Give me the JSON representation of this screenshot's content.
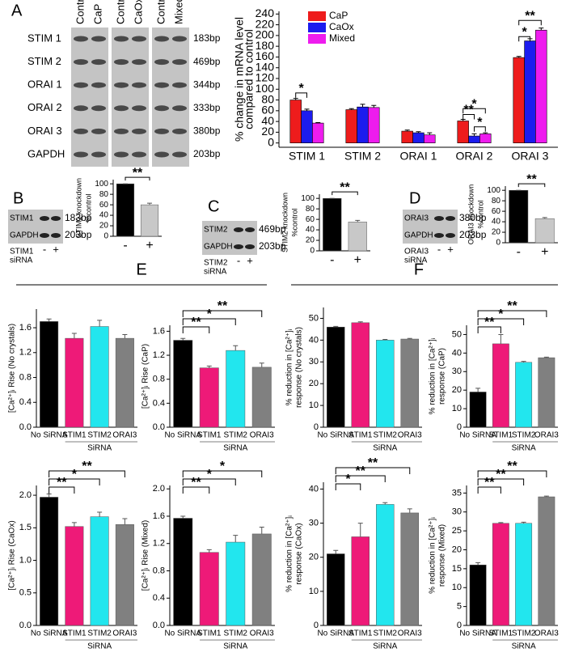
{
  "panel_labels": {
    "a": "A",
    "b": "B",
    "c": "C",
    "d": "D",
    "e": "E",
    "f": "F"
  },
  "gel_a": {
    "lanes": [
      [
        "Control",
        "CaP"
      ],
      [
        "Control",
        "CaOx"
      ],
      [
        "Control",
        "Mixed"
      ]
    ],
    "rows": [
      {
        "gene": "STIM 1",
        "size": "183bp"
      },
      {
        "gene": "STIM 2",
        "size": "469bp"
      },
      {
        "gene": "ORAI 1",
        "size": "344bp"
      },
      {
        "gene": "ORAI 2",
        "size": "333bp"
      },
      {
        "gene": "ORAI 3",
        "size": "380bp"
      },
      {
        "gene": "GAPDH",
        "size": "203bp"
      }
    ]
  },
  "knockdown_gels": [
    {
      "target": "STIM1",
      "target_size": "183bp",
      "control": "GAPDH",
      "control_size": "203bp",
      "sirna": [
        "STIM1",
        "siRNA"
      ],
      "lanes": [
        "-",
        "+"
      ]
    },
    {
      "target": "STIM2",
      "target_size": "469bp",
      "control": "GAPDH",
      "control_size": "203bp",
      "sirna": [
        "STIM2",
        "siRNA"
      ],
      "lanes": [
        "-",
        "+"
      ]
    },
    {
      "target": "ORAI3",
      "target_size": "380bp",
      "control": "GAPDH",
      "control_size": "203bp",
      "sirna": [
        "ORAI3",
        "siRNA"
      ],
      "lanes": [
        "-",
        "+"
      ]
    }
  ],
  "chart_data": [
    {
      "type": "grouped-bar",
      "ylabel": [
        "% change in mRNA level",
        "compared to control"
      ],
      "categories": [
        "STIM 1",
        "STIM 2",
        "ORAI 1",
        "ORAI 2",
        "ORAI 3"
      ],
      "series": [
        {
          "name": "CaP",
          "color": "#ee1c1c",
          "values": [
            80,
            62,
            22,
            41,
            159
          ],
          "errors": [
            3,
            2,
            2,
            3,
            2
          ]
        },
        {
          "name": "CaOx",
          "color": "#1c1cee",
          "values": [
            60,
            67,
            19,
            13,
            190
          ],
          "errors": [
            3,
            5,
            2,
            4,
            4
          ]
        },
        {
          "name": "Mixed",
          "color": "#ee1cee",
          "values": [
            37,
            66,
            15,
            17,
            210
          ],
          "errors": [
            1,
            4,
            4,
            2,
            4
          ]
        }
      ],
      "ylim": [
        -8,
        245
      ],
      "yticks": [
        0,
        20,
        40,
        60,
        80,
        100,
        120,
        140,
        160,
        180,
        200,
        220,
        240
      ],
      "legend": "upper-left",
      "annotations": [
        "*",
        "**",
        "*",
        "*",
        "*",
        "**"
      ]
    },
    {
      "type": "bar",
      "ylabel": [
        "STIM1 knockdown",
        "%control"
      ],
      "categories": [
        "-",
        "+"
      ],
      "values": [
        100,
        60
      ],
      "errors": [
        0,
        3
      ],
      "colors": [
        "#000000",
        "#c8c8c8"
      ],
      "ylim": [
        0,
        108
      ],
      "yticks": [
        0,
        20,
        40,
        60,
        80,
        100
      ],
      "annotations": [
        "**"
      ]
    },
    {
      "type": "bar",
      "ylabel": [
        "STIM2 knockdown",
        "%control"
      ],
      "categories": [
        "-",
        "+"
      ],
      "values": [
        100,
        55
      ],
      "errors": [
        0,
        3
      ],
      "colors": [
        "#000000",
        "#c8c8c8"
      ],
      "ylim": [
        0,
        108
      ],
      "yticks": [
        0,
        20,
        40,
        60,
        80,
        100
      ],
      "annotations": [
        "**"
      ]
    },
    {
      "type": "bar",
      "ylabel": [
        "ORAI3 knockdown",
        "%control"
      ],
      "categories": [
        "-",
        "+"
      ],
      "values": [
        100,
        46
      ],
      "errors": [
        0,
        2
      ],
      "colors": [
        "#000000",
        "#c8c8c8"
      ],
      "ylim": [
        0,
        108
      ],
      "yticks": [
        0,
        20,
        40,
        60,
        80,
        100
      ],
      "annotations": [
        "**"
      ]
    },
    {
      "type": "bar",
      "ylabel": [
        "[Ca²⁺]ᵢ Rise (No crystals)"
      ],
      "categories": [
        "No SiRNA",
        "STIM1",
        "STIM2",
        "ORAI3"
      ],
      "xlabel": "SiRNA",
      "values": [
        1.7,
        1.43,
        1.62,
        1.43
      ],
      "errors": [
        0.04,
        0.08,
        0.1,
        0.06
      ],
      "colors": [
        "#000000",
        "#ee1a78",
        "#22e6ee",
        "#808080"
      ],
      "ylim": [
        0,
        1.9
      ],
      "yticks": [
        {
          "value": 0,
          "label": "0.0"
        },
        0.4,
        0.8,
        1.2,
        1.6
      ],
      "annotations": []
    },
    {
      "type": "bar",
      "ylabel": [
        "[Ca²⁺]ᵢ Rise (CaP)"
      ],
      "categories": [
        "No SiRNA",
        "STIM1",
        "STIM2",
        "ORAI3"
      ],
      "xlabel": "SiRNA",
      "values": [
        1.45,
        0.99,
        1.28,
        1.0
      ],
      "errors": [
        0.03,
        0.03,
        0.08,
        0.07
      ],
      "colors": [
        "#000000",
        "#ee1a78",
        "#22e6ee",
        "#808080"
      ],
      "ylim": [
        0,
        1.7
      ],
      "yticks": [
        {
          "value": 0,
          "label": "0.0"
        },
        0.4,
        0.8,
        1.2,
        1.6
      ],
      "annotations": [
        "**",
        "*",
        "**"
      ]
    },
    {
      "type": "bar",
      "ylabel": [
        "[Ca²⁺]ᵢ Rise (CaOx)"
      ],
      "categories": [
        "No SiRNA",
        "STIM1",
        "STIM2",
        "ORAI3"
      ],
      "xlabel": "SiRNA",
      "values": [
        1.97,
        1.52,
        1.67,
        1.55
      ],
      "errors": [
        0.05,
        0.06,
        0.07,
        0.09
      ],
      "colors": [
        "#000000",
        "#ee1a78",
        "#22e6ee",
        "#808080"
      ],
      "ylim": [
        0,
        2.15
      ],
      "yticks": [
        {
          "value": 0,
          "label": "0.0"
        },
        0.5,
        {
          "value": 1,
          "label": "1.0"
        },
        1.5,
        {
          "value": 2,
          "label": "2.0"
        }
      ],
      "annotations": [
        "**",
        "*",
        "**"
      ]
    },
    {
      "type": "bar",
      "ylabel": [
        "[Ca²⁺]ᵢ Rise (Mixed)"
      ],
      "categories": [
        "No SiRNA",
        "STIM1",
        "STIM2",
        "ORAI3"
      ],
      "xlabel": "SiRNA",
      "values": [
        1.57,
        1.07,
        1.22,
        1.34
      ],
      "errors": [
        0.03,
        0.04,
        0.1,
        0.1
      ],
      "colors": [
        "#000000",
        "#ee1a78",
        "#22e6ee",
        "#808080"
      ],
      "ylim": [
        0,
        2.05
      ],
      "yticks": [
        {
          "value": 0,
          "label": "0.0"
        },
        0.4,
        0.8,
        1.2,
        1.6,
        {
          "value": 2,
          "label": "2.0"
        }
      ],
      "annotations": [
        "**",
        "*",
        "*"
      ]
    },
    {
      "type": "bar",
      "ylabel": [
        "% reduction in [Ca²⁺]ᵢ",
        "response (No crystals)"
      ],
      "categories": [
        "No SiRNA",
        "STIM1",
        "STIM2",
        "ORAI3"
      ],
      "xlabel": "SiRNA",
      "values": [
        46,
        48,
        40,
        40.5
      ],
      "errors": [
        0.3,
        0.4,
        0.3,
        0.3
      ],
      "colors": [
        "#000000",
        "#ee1a78",
        "#22e6ee",
        "#808080"
      ],
      "ylim": [
        0,
        55
      ],
      "yticks": [
        0,
        10,
        20,
        30,
        40,
        50
      ],
      "annotations": []
    },
    {
      "type": "bar",
      "ylabel": [
        "% reduction in [Ca²⁺]ᵢ",
        "response (CaP)"
      ],
      "categories": [
        "No SiRNA",
        "STIM1",
        "STIM2",
        "ORAI3"
      ],
      "xlabel": "SiRNA",
      "values": [
        19,
        45,
        35,
        37.5
      ],
      "errors": [
        2,
        5,
        0.5,
        0.3
      ],
      "colors": [
        "#000000",
        "#ee1a78",
        "#22e6ee",
        "#808080"
      ],
      "ylim": [
        0,
        55
      ],
      "yticks": [
        0,
        10,
        20,
        30,
        40,
        50
      ],
      "annotations": [
        "**",
        "*",
        "**"
      ]
    },
    {
      "type": "bar",
      "ylabel": [
        "% reduction in [Ca²⁺]ᵢ",
        "response (CaOx)"
      ],
      "categories": [
        "No SiRNA",
        "STIM1",
        "STIM2",
        "ORAI3"
      ],
      "xlabel": "SiRNA",
      "values": [
        21,
        26,
        35.5,
        33
      ],
      "errors": [
        1,
        4,
        0.5,
        1.2
      ],
      "colors": [
        "#000000",
        "#ee1a78",
        "#22e6ee",
        "#808080"
      ],
      "ylim": [
        0,
        42
      ],
      "yticks": [
        0,
        10,
        20,
        30,
        40
      ],
      "annotations": [
        "*",
        "**",
        "**"
      ]
    },
    {
      "type": "bar",
      "ylabel": [
        "% reduction in [Ca²⁺]ᵢ",
        "response (Mixed)"
      ],
      "categories": [
        "No SiRNA",
        "STIM1",
        "STIM2",
        "ORAI3"
      ],
      "xlabel": "SiRNA",
      "values": [
        16,
        27,
        27,
        34
      ],
      "errors": [
        0.6,
        0.2,
        0.3,
        0.2
      ],
      "colors": [
        "#000000",
        "#ee1a78",
        "#22e6ee",
        "#808080"
      ],
      "ylim": [
        0,
        37
      ],
      "yticks": [
        0,
        5,
        10,
        15,
        20,
        25,
        30,
        35
      ],
      "annotations": [
        "**",
        "**",
        "**"
      ]
    }
  ]
}
